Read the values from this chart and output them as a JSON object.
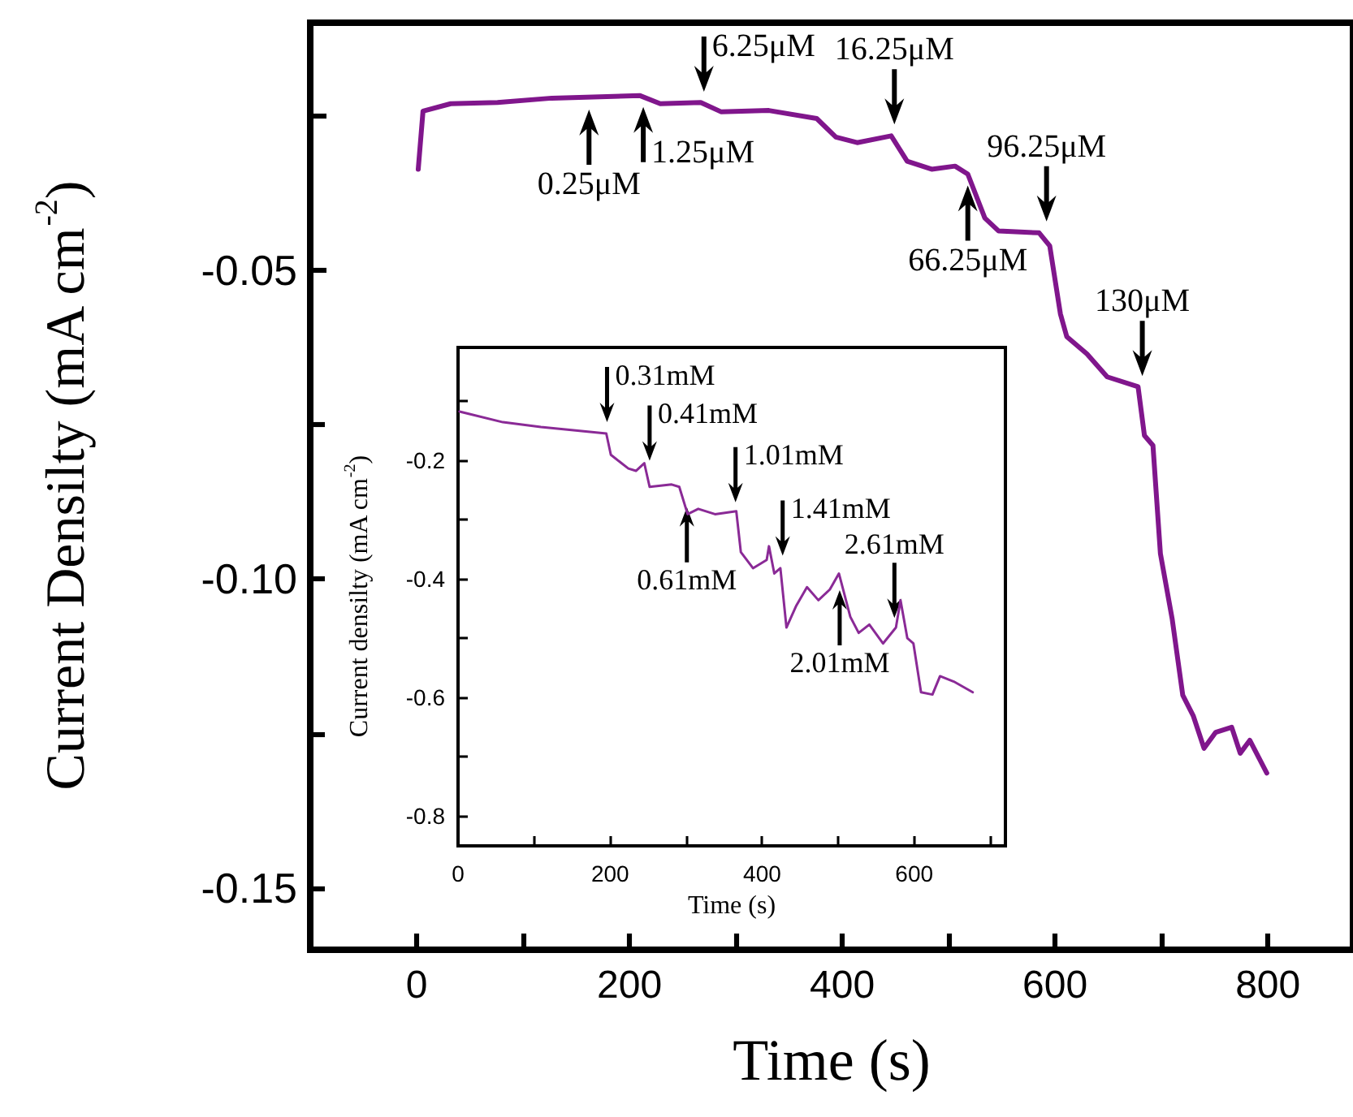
{
  "chart_data": [
    {
      "type": "line",
      "xlabel": "Time (s)",
      "ylabel": "Current Densilty (mA cm$^{-2}$)",
      "xlim": [
        -100,
        880
      ],
      "xticks": [
        0,
        {
          "value": 100,
          "label": null
        },
        200,
        {
          "value": 300,
          "label": null
        },
        400,
        {
          "value": 500,
          "label": null
        },
        600,
        {
          "value": 700,
          "label": null
        },
        800
      ],
      "ylim": [
        -0.16,
        -0.01
      ],
      "yticks": [
        -0.15,
        {
          "value": -0.125,
          "label": null
        },
        {
          "value": -0.1,
          "label": "-0.10"
        },
        {
          "value": -0.075,
          "label": null
        },
        -0.05,
        {
          "value": -0.025,
          "label": null
        }
      ],
      "series": [
        {
          "color": "#80168c",
          "x": [
            1.5,
            6,
            32,
            76,
            127,
            210,
            229,
            267,
            286,
            331,
            376,
            394,
            414,
            446,
            461,
            484,
            506,
            518,
            534,
            547,
            585,
            595,
            605,
            611,
            630,
            649,
            678,
            684,
            692,
            699,
            710,
            720,
            730,
            740,
            751,
            766,
            774,
            783,
            799
          ],
          "values": [
            -0.0337,
            -0.0243,
            -0.0231,
            -0.0229,
            -0.0222,
            -0.0218,
            -0.0231,
            -0.0229,
            -0.0244,
            -0.0242,
            -0.0255,
            -0.0285,
            -0.0294,
            -0.0283,
            -0.0324,
            -0.0337,
            -0.0332,
            -0.0345,
            -0.0416,
            -0.0437,
            -0.044,
            -0.0461,
            -0.0571,
            -0.0608,
            -0.0636,
            -0.0673,
            -0.0689,
            -0.0768,
            -0.0784,
            -0.0959,
            -0.1064,
            -0.1188,
            -0.1222,
            -0.1274,
            -0.1248,
            -0.124,
            -0.1282,
            -0.1261,
            -0.1314
          ]
        }
      ],
      "annotations": [
        {
          "text": "0.25μM",
          "x": 162,
          "y": -0.0222
        },
        {
          "text": "1.25μM",
          "x": 213,
          "y": -0.0218
        },
        {
          "text": "6.25μM",
          "x": 270,
          "y": -0.023
        },
        {
          "text": "16.25μM",
          "x": 449,
          "y": -0.0283
        },
        {
          "text": "66.25μM",
          "x": 518,
          "y": -0.0345
        },
        {
          "text": "96.25μM",
          "x": 592,
          "y": -0.044
        },
        {
          "text": "130μM",
          "x": 682,
          "y": -0.069
        }
      ]
    },
    {
      "type": "line",
      "xlabel": "Time (s)",
      "ylabel": "Current densilty (mA cm$^{-2}$)",
      "xlim": [
        0,
        720
      ],
      "xticks": [
        0,
        {
          "value": 100,
          "label": null
        },
        200,
        {
          "value": 300,
          "label": null
        },
        400,
        {
          "value": 500,
          "label": null
        },
        600,
        {
          "value": 700,
          "label": null
        }
      ],
      "ylim": [
        -0.85,
        -0.01
      ],
      "yticks": [
        -0.8,
        {
          "value": -0.7,
          "label": null
        },
        -0.6,
        {
          "value": -0.5,
          "label": null
        },
        -0.4,
        {
          "value": -0.3,
          "label": null
        },
        -0.2,
        {
          "value": -0.1,
          "label": null
        }
      ],
      "series": [
        {
          "color": "#8a2a96",
          "x": [
            2,
            59,
            109,
            195,
            201,
            224,
            234,
            245,
            252,
            281,
            291,
            302,
            316,
            338,
            366,
            372,
            388,
            406,
            409,
            416,
            424,
            432,
            445,
            459,
            474,
            489,
            501,
            516,
            527,
            541,
            559,
            576,
            582,
            591,
            599,
            609,
            624,
            634,
            652,
            677
          ],
          "values": [
            -0.118,
            -0.136,
            -0.144,
            -0.155,
            -0.191,
            -0.214,
            -0.218,
            -0.205,
            -0.245,
            -0.241,
            -0.245,
            -0.291,
            -0.282,
            -0.291,
            -0.286,
            -0.355,
            -0.382,
            -0.368,
            -0.345,
            -0.391,
            -0.382,
            -0.482,
            -0.445,
            -0.414,
            -0.436,
            -0.418,
            -0.391,
            -0.464,
            -0.491,
            -0.477,
            -0.509,
            -0.482,
            -0.436,
            -0.5,
            -0.509,
            -0.591,
            -0.595,
            -0.564,
            -0.573,
            -0.591
          ]
        }
      ],
      "annotations": [
        {
          "text": "0.31mM",
          "x": 196,
          "y": -0.155
        },
        {
          "text": "0.41mM",
          "x": 252,
          "y": -0.22
        },
        {
          "text": "0.61mM",
          "x": 301,
          "y": -0.26
        },
        {
          "text": "1.01mM",
          "x": 365,
          "y": -0.29
        },
        {
          "text": "1.41mM",
          "x": 427,
          "y": -0.38
        },
        {
          "text": "2.01mM",
          "x": 502,
          "y": -0.4
        },
        {
          "text": "2.61mM",
          "x": 574,
          "y": -0.485
        }
      ]
    }
  ]
}
